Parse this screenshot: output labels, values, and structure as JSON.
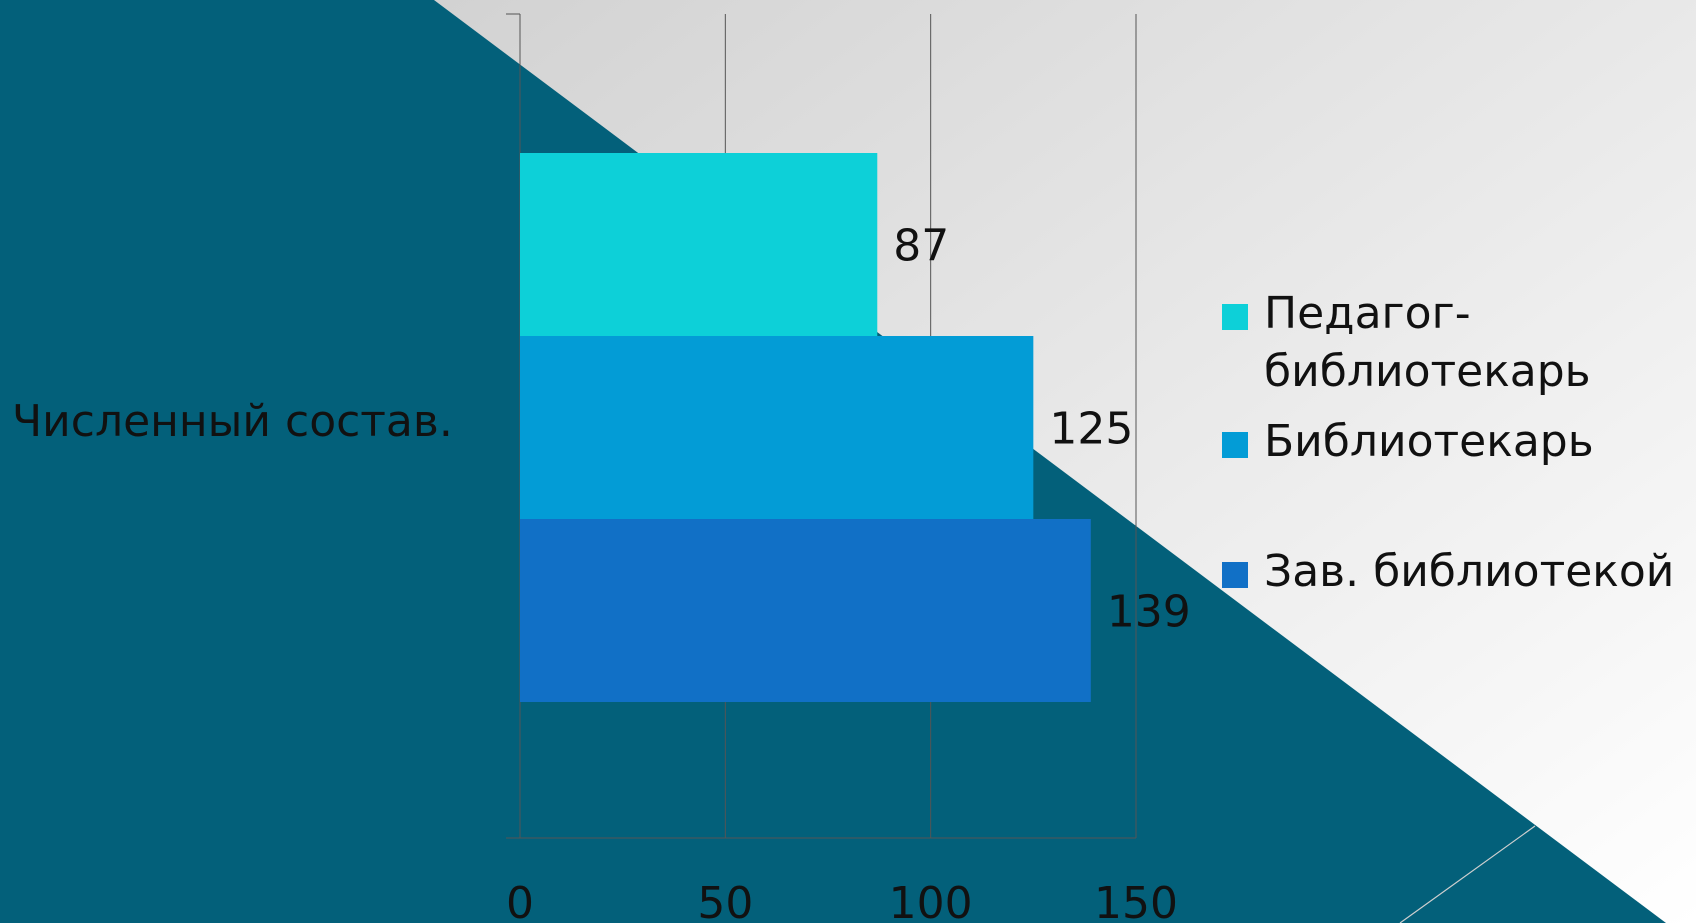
{
  "chart_data": {
    "type": "bar",
    "orientation": "horizontal",
    "categories": [
      "Численный состав."
    ],
    "series": [
      {
        "name": "Педагог-библиотекарь",
        "values": [
          87
        ],
        "color": "#0dd0d8"
      },
      {
        "name": "Библиотекарь",
        "values": [
          125
        ],
        "color": "#039cd6"
      },
      {
        "name": "Зав. библиотекой",
        "values": [
          139
        ],
        "color": "#1170c6"
      }
    ],
    "xlim": [
      0,
      150
    ],
    "xticks": [
      "0",
      "50",
      "100",
      "150"
    ],
    "grid": "vertical",
    "legend_position": "right"
  },
  "background": {
    "dark": "#03607a",
    "light_top": "#d4d4d4",
    "light_bottom": "#ffffff"
  }
}
